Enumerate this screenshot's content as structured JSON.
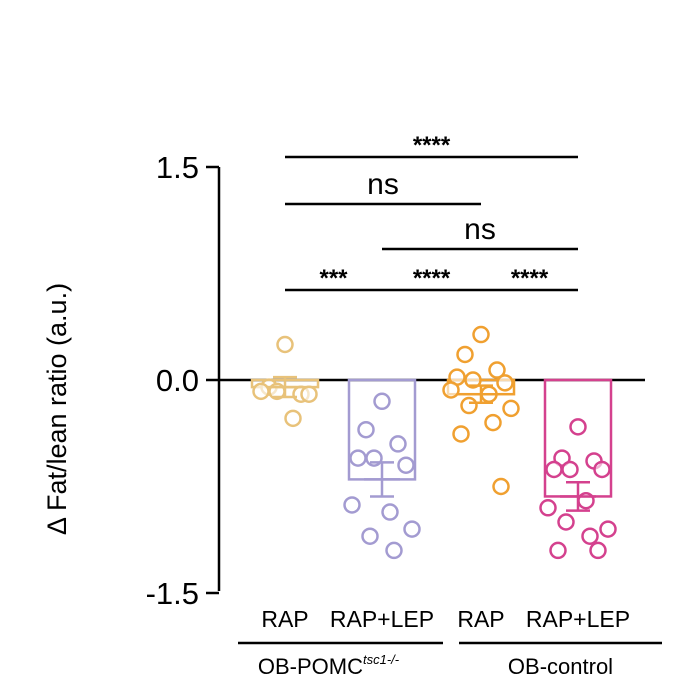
{
  "chart_data": {
    "type": "bar",
    "ylabel": "Δ Fat/lean ratio (a.u.)",
    "ylim": [
      -1.5,
      1.5
    ],
    "yticks": [
      "1.5",
      "0.0",
      "-1.5"
    ],
    "yticks_values": [
      1.5,
      0.0,
      -1.5
    ],
    "categories": [
      "RAP",
      "RAP+LEP",
      "RAP",
      "RAP+LEP"
    ],
    "groups": [
      {
        "label": "OB-POMC",
        "superscript": "tsc1-/-",
        "categories": [
          0,
          1
        ]
      },
      {
        "label": "OB-control",
        "superscript": "",
        "categories": [
          2,
          3
        ]
      }
    ],
    "colors": [
      "#e8c27a",
      "#a39bd1",
      "#f0a030",
      "#d4418e"
    ],
    "series": [
      {
        "category": 0,
        "mean": -0.05,
        "sem": 0.07,
        "points": [
          0.25,
          -0.05,
          -0.1,
          -0.08,
          -0.1,
          -0.08,
          -0.27
        ]
      },
      {
        "category": 1,
        "mean": -0.7,
        "sem": 0.12,
        "points": [
          -0.15,
          -0.35,
          -0.45,
          -0.55,
          -0.6,
          -0.55,
          -0.93,
          -0.88,
          -1.05,
          -1.1,
          -1.2
        ]
      },
      {
        "category": 2,
        "mean": -0.1,
        "sem": 0.06,
        "points": [
          0.32,
          0.18,
          0.07,
          0.02,
          -0.02,
          0.0,
          -0.1,
          -0.07,
          -0.2,
          -0.18,
          -0.3,
          -0.38,
          -0.75
        ]
      },
      {
        "category": 3,
        "mean": -0.82,
        "sem": 0.1,
        "points": [
          -0.33,
          -0.55,
          -0.57,
          -0.63,
          -0.63,
          -0.63,
          -0.85,
          -0.9,
          -1.05,
          -1.0,
          -1.1,
          -1.2,
          -1.2
        ]
      }
    ],
    "comparisons": [
      {
        "from": 0,
        "to": 3,
        "label": "****"
      },
      {
        "from": 0,
        "to": 2,
        "label": "ns"
      },
      {
        "from": 1,
        "to": 3,
        "label": "ns"
      },
      {
        "from": 0,
        "to": 1,
        "label": "***"
      },
      {
        "from": 1,
        "to": 2,
        "label": "****"
      },
      {
        "from": 2,
        "to": 3,
        "label": "****"
      }
    ]
  }
}
